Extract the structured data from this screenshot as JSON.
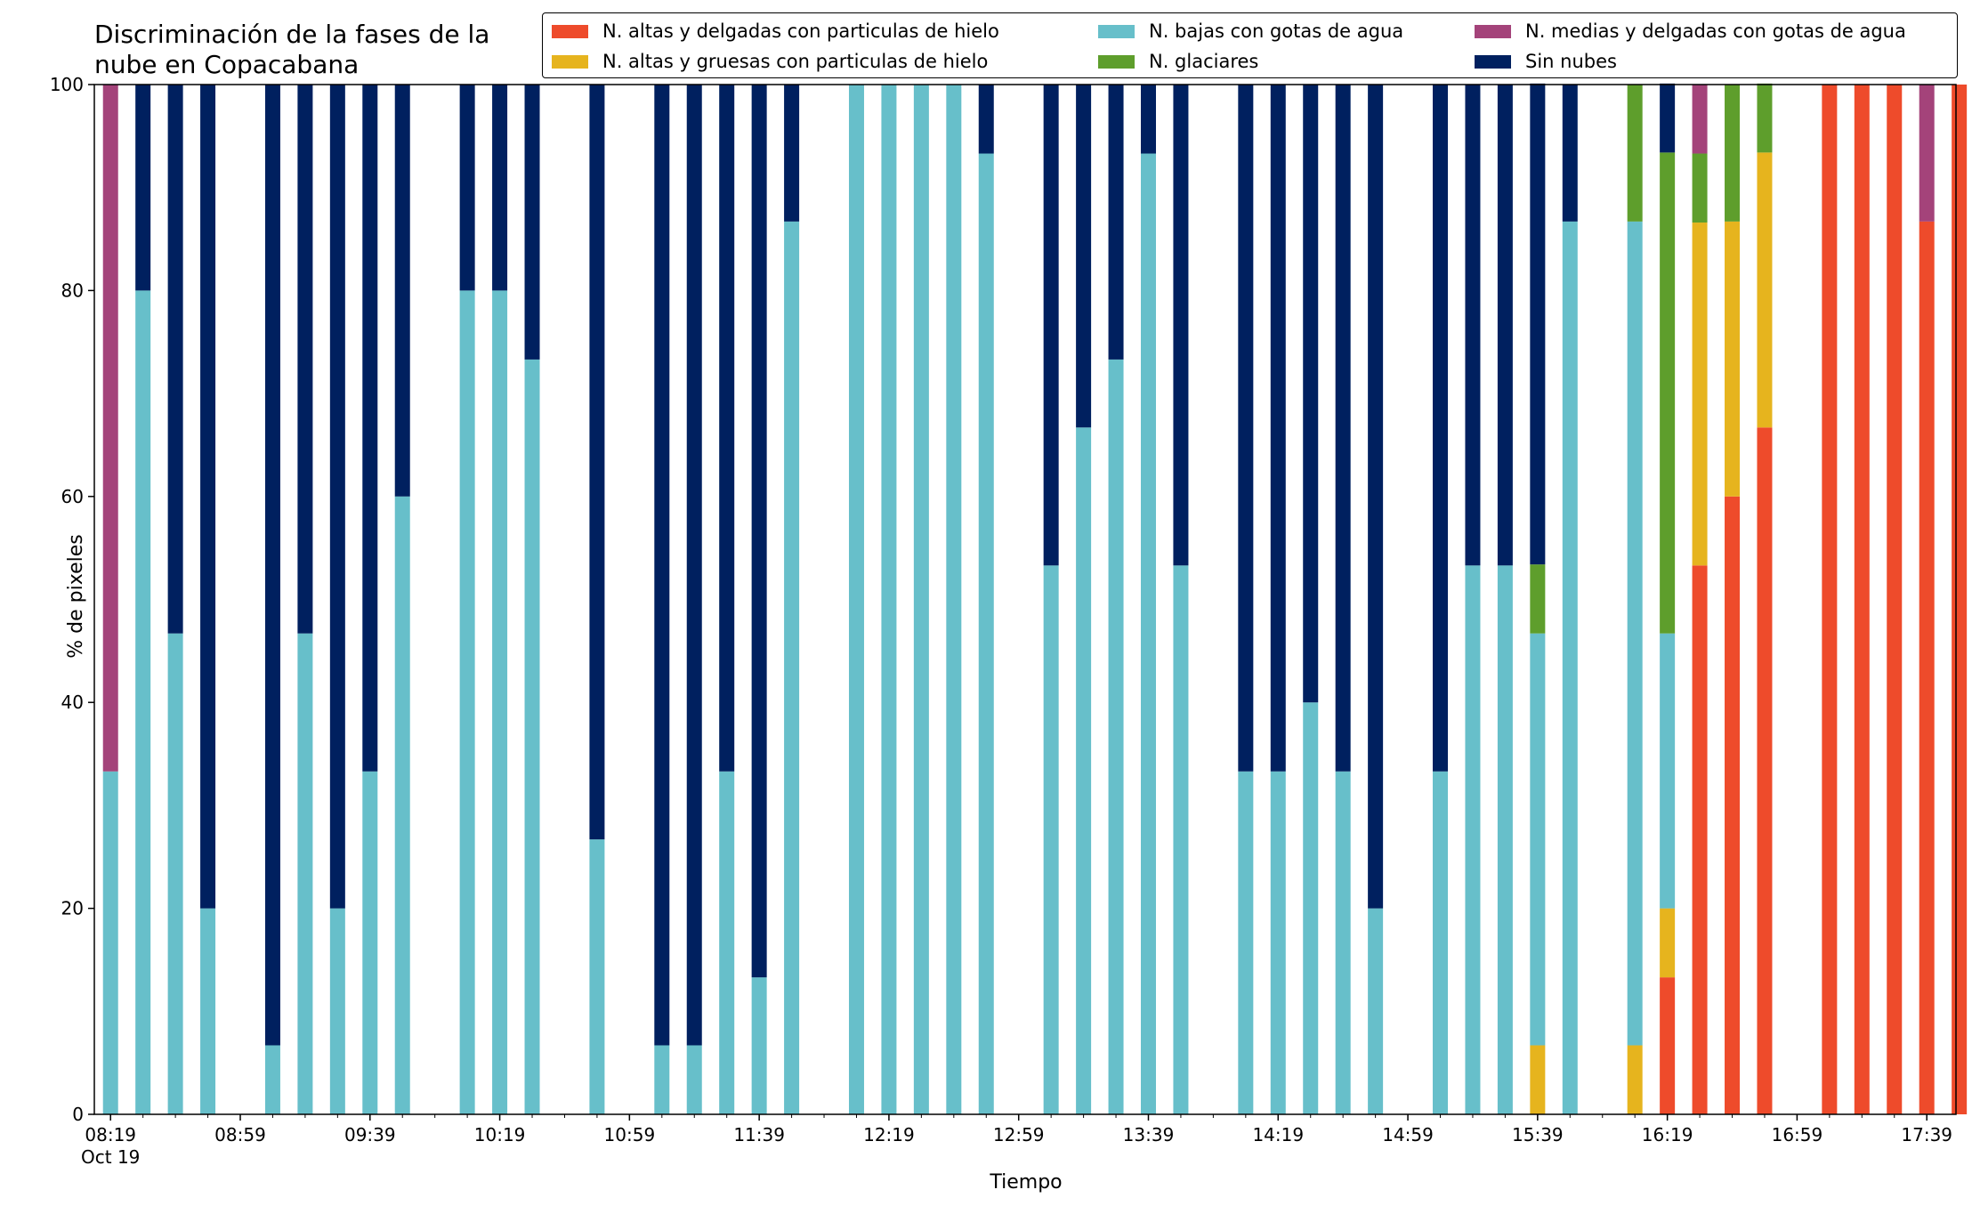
{
  "title": "Discriminación de la fases de la nube en Copacabana",
  "xlabel": "Tiempo",
  "ylabel": "% de pixeles",
  "chart_data": {
    "type": "bar",
    "stacked": true,
    "title": "Discriminación de la fases de la nube en Copacabana",
    "xlabel": "Tiempo",
    "ylabel": "% de pixeles",
    "ylim": [
      0,
      100
    ],
    "yticks": [
      0,
      20,
      40,
      60,
      80,
      100
    ],
    "x_axis": "time of day (minutes), 19 Oct",
    "xlim_minutes": [
      494,
      1068
    ],
    "xticks": [
      {
        "minute": 499,
        "label": "08:19",
        "sublabel": "Oct 19"
      },
      {
        "minute": 539,
        "label": "08:59"
      },
      {
        "minute": 579,
        "label": "09:39"
      },
      {
        "minute": 619,
        "label": "10:19"
      },
      {
        "minute": 659,
        "label": "10:59"
      },
      {
        "minute": 699,
        "label": "11:39"
      },
      {
        "minute": 739,
        "label": "12:19"
      },
      {
        "minute": 779,
        "label": "12:59"
      },
      {
        "minute": 819,
        "label": "13:39"
      },
      {
        "minute": 859,
        "label": "14:19"
      },
      {
        "minute": 899,
        "label": "14:59"
      },
      {
        "minute": 939,
        "label": "15:39"
      },
      {
        "minute": 979,
        "label": "16:19"
      },
      {
        "minute": 1019,
        "label": "16:59"
      },
      {
        "minute": 1059,
        "label": "17:39"
      }
    ],
    "minor_tick_step_minutes": 10,
    "legend_position": "top",
    "series": [
      {
        "name": "N. altas y delgadas con particulas de hielo",
        "color": "#ee4b2b"
      },
      {
        "name": "N. altas y gruesas con particulas de hielo",
        "color": "#e6b41e"
      },
      {
        "name": "N. bajas con gotas de agua",
        "color": "#67bfca"
      },
      {
        "name": "N. glaciares",
        "color": "#5e9e2c"
      },
      {
        "name": "N. medias y delgadas con gotas de agua",
        "color": "#a4437a"
      },
      {
        "name": "Sin nubes",
        "color": "#00205f"
      }
    ],
    "stack_order": [
      "N. altas y delgadas con particulas de hielo",
      "N. altas y gruesas con particulas de hielo",
      "N. bajas con gotas de agua",
      "N. glaciares",
      "N. medias y delgadas con gotas de agua",
      "Sin nubes"
    ],
    "bars": [
      {
        "time": "08:19",
        "values": [
          0,
          0,
          33.3,
          0,
          66.7,
          0
        ]
      },
      {
        "time": "08:29",
        "values": [
          0,
          0,
          80,
          0,
          0,
          20
        ]
      },
      {
        "time": "08:39",
        "values": [
          0,
          0,
          46.7,
          0,
          0,
          53.3
        ]
      },
      {
        "time": "08:49",
        "values": [
          0,
          0,
          20,
          0,
          0,
          80
        ]
      },
      {
        "time": "09:09",
        "values": [
          0,
          0,
          6.7,
          0,
          0,
          93.3
        ]
      },
      {
        "time": "09:19",
        "values": [
          0,
          0,
          46.7,
          0,
          0,
          53.3
        ]
      },
      {
        "time": "09:29",
        "values": [
          0,
          0,
          20,
          0,
          0,
          80
        ]
      },
      {
        "time": "09:39",
        "values": [
          0,
          0,
          33.3,
          0,
          0,
          66.7
        ]
      },
      {
        "time": "09:49",
        "values": [
          0,
          0,
          60,
          0,
          0,
          40
        ]
      },
      {
        "time": "10:09",
        "values": [
          0,
          0,
          80,
          0,
          0,
          20
        ]
      },
      {
        "time": "10:19",
        "values": [
          0,
          0,
          80,
          0,
          0,
          20
        ]
      },
      {
        "time": "10:29",
        "values": [
          0,
          0,
          73.3,
          0,
          0,
          26.7
        ]
      },
      {
        "time": "10:49",
        "values": [
          0,
          0,
          26.7,
          0,
          0,
          73.3
        ]
      },
      {
        "time": "11:09",
        "values": [
          0,
          0,
          6.7,
          0,
          0,
          93.3
        ]
      },
      {
        "time": "11:19",
        "values": [
          0,
          0,
          6.7,
          0,
          0,
          93.3
        ]
      },
      {
        "time": "11:29",
        "values": [
          0,
          0,
          33.3,
          0,
          0,
          66.7
        ]
      },
      {
        "time": "11:39",
        "values": [
          0,
          0,
          13.3,
          0,
          0,
          86.7
        ]
      },
      {
        "time": "11:49",
        "values": [
          0,
          0,
          86.7,
          0,
          0,
          13.3
        ]
      },
      {
        "time": "12:09",
        "values": [
          0,
          0,
          100,
          0,
          0,
          0
        ]
      },
      {
        "time": "12:19",
        "values": [
          0,
          0,
          100,
          0,
          0,
          0
        ]
      },
      {
        "time": "12:29",
        "values": [
          0,
          0,
          100,
          0,
          0,
          0
        ]
      },
      {
        "time": "12:39",
        "values": [
          0,
          0,
          100,
          0,
          0,
          0
        ]
      },
      {
        "time": "12:49",
        "values": [
          0,
          0,
          93.3,
          0,
          0,
          6.7
        ]
      },
      {
        "time": "13:09",
        "values": [
          0,
          0,
          53.3,
          0,
          0,
          46.7
        ]
      },
      {
        "time": "13:19",
        "values": [
          0,
          0,
          66.7,
          0,
          0,
          33.3
        ]
      },
      {
        "time": "13:29",
        "values": [
          0,
          0,
          73.3,
          0,
          0,
          26.7
        ]
      },
      {
        "time": "13:39",
        "values": [
          0,
          0,
          93.3,
          0,
          0,
          6.7
        ]
      },
      {
        "time": "13:49",
        "values": [
          0,
          0,
          53.3,
          0,
          0,
          46.7
        ]
      },
      {
        "time": "14:09",
        "values": [
          0,
          0,
          33.3,
          0,
          0,
          66.7
        ]
      },
      {
        "time": "14:19",
        "values": [
          0,
          0,
          33.3,
          0,
          0,
          66.7
        ]
      },
      {
        "time": "14:29",
        "values": [
          0,
          0,
          40,
          0,
          0,
          60
        ]
      },
      {
        "time": "14:39",
        "values": [
          0,
          0,
          33.3,
          0,
          0,
          66.7
        ]
      },
      {
        "time": "14:49",
        "values": [
          0,
          0,
          20,
          0,
          0,
          80
        ]
      },
      {
        "time": "15:09",
        "values": [
          0,
          0,
          33.3,
          0,
          0,
          66.7
        ]
      },
      {
        "time": "15:19",
        "values": [
          0,
          0,
          53.3,
          0,
          0,
          46.7
        ]
      },
      {
        "time": "15:29",
        "values": [
          0,
          0,
          53.3,
          0,
          0,
          46.7
        ]
      },
      {
        "time": "15:39",
        "values": [
          0,
          6.7,
          40,
          6.7,
          0,
          46.7
        ]
      },
      {
        "time": "15:49",
        "values": [
          0,
          0,
          86.7,
          0,
          0,
          13.3
        ]
      },
      {
        "time": "16:09",
        "values": [
          0,
          6.7,
          80,
          13.3,
          0,
          0
        ]
      },
      {
        "time": "16:19",
        "values": [
          13.3,
          6.7,
          26.7,
          46.7,
          0,
          6.7
        ]
      },
      {
        "time": "16:29",
        "values": [
          53.3,
          33.3,
          0,
          6.7,
          6.7,
          0
        ]
      },
      {
        "time": "16:39",
        "values": [
          60,
          26.7,
          0,
          13.3,
          0,
          0
        ]
      },
      {
        "time": "16:49",
        "values": [
          66.7,
          26.7,
          0,
          6.7,
          0,
          0
        ]
      },
      {
        "time": "17:09",
        "values": [
          100,
          0,
          0,
          0,
          0,
          0
        ]
      },
      {
        "time": "17:19",
        "values": [
          100,
          0,
          0,
          0,
          0,
          0
        ]
      },
      {
        "time": "17:29",
        "values": [
          100,
          0,
          0,
          0,
          0,
          0
        ]
      },
      {
        "time": "17:39",
        "values": [
          86.7,
          0,
          0,
          0,
          13.3,
          0
        ]
      },
      {
        "time": "17:49",
        "values": [
          100,
          0,
          0,
          0,
          0,
          0
        ]
      }
    ]
  }
}
